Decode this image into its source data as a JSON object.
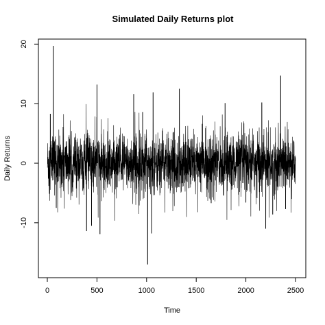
{
  "chart_data": {
    "type": "line",
    "title": "Simulated Daily Returns plot",
    "xlabel": "Time",
    "ylabel": "Daily Returns",
    "xlim": [
      0,
      2500
    ],
    "ylim": [
      -17.5,
      20.5
    ],
    "xticks": [
      0,
      500,
      1000,
      1500,
      2000,
      2500
    ],
    "yticks": [
      -10,
      0,
      10,
      20
    ],
    "grid": false,
    "n_points": 2500,
    "line_color": "#000000",
    "notable_spikes": [
      {
        "x": 30,
        "y": 8.3
      },
      {
        "x": 60,
        "y": 19.7
      },
      {
        "x": 90,
        "y": -7.5
      },
      {
        "x": 395,
        "y": -11.4
      },
      {
        "x": 445,
        "y": -10.5
      },
      {
        "x": 500,
        "y": 13.2
      },
      {
        "x": 530,
        "y": -11.9
      },
      {
        "x": 870,
        "y": 11.6
      },
      {
        "x": 960,
        "y": 8.6
      },
      {
        "x": 1010,
        "y": -17.0
      },
      {
        "x": 1050,
        "y": -11.8
      },
      {
        "x": 1065,
        "y": 11.9
      },
      {
        "x": 1330,
        "y": 12.5
      },
      {
        "x": 1560,
        "y": 6.6
      },
      {
        "x": 1650,
        "y": -6.7
      },
      {
        "x": 1790,
        "y": 10.1
      },
      {
        "x": 2000,
        "y": -6.6
      },
      {
        "x": 2160,
        "y": 10.2
      },
      {
        "x": 2200,
        "y": -11.0
      },
      {
        "x": 2270,
        "y": -8.6
      },
      {
        "x": 2350,
        "y": 14.7
      },
      {
        "x": 2400,
        "y": -7.7
      },
      {
        "x": 2480,
        "y": 3.8
      }
    ]
  }
}
